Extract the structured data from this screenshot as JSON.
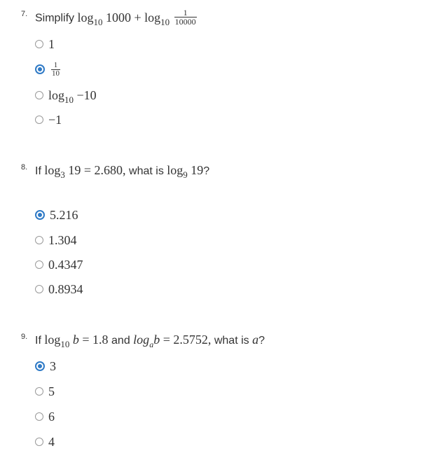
{
  "questions": [
    {
      "number": "7.",
      "prefix": "Simplify",
      "math": {
        "log": "log",
        "base_a": "10",
        "arg_a": "1000",
        "plus": "+",
        "base_b": "10",
        "frac_num": "1",
        "frac_den": "10000"
      },
      "options": [
        {
          "label": "1",
          "selected": false
        },
        {
          "frac_num": "1",
          "frac_den": "10",
          "selected": true
        },
        {
          "log": "log",
          "base": "10",
          "value": "−10",
          "selected": false
        },
        {
          "label": "−1",
          "selected": false
        }
      ]
    },
    {
      "number": "8.",
      "prefix": "If",
      "math_a": {
        "log": "log",
        "base": "3",
        "arg": "19",
        "eq": "=",
        "value": "2.680,"
      },
      "middle": "what is",
      "math_b": {
        "log": "log",
        "base": "9",
        "arg": "19"
      },
      "suffix": "?",
      "options": [
        {
          "label": "5.216",
          "selected": true
        },
        {
          "label": "1.304",
          "selected": false
        },
        {
          "label": "0.4347",
          "selected": false
        },
        {
          "label": "0.8934",
          "selected": false
        }
      ]
    },
    {
      "number": "9.",
      "prefix": "If",
      "math_a": {
        "log": "log",
        "base": "10",
        "var": "b",
        "eq": "=",
        "value": "1.8"
      },
      "middle": "and",
      "math_b": {
        "log": "log",
        "base": "a",
        "var": "b",
        "eq": "=",
        "value": "2.5752,"
      },
      "middle2": "what is",
      "var": "a",
      "suffix": "?",
      "options": [
        {
          "label": "3",
          "selected": true
        },
        {
          "label": "5",
          "selected": false
        },
        {
          "label": "6",
          "selected": false
        },
        {
          "label": "4",
          "selected": false
        }
      ]
    }
  ]
}
